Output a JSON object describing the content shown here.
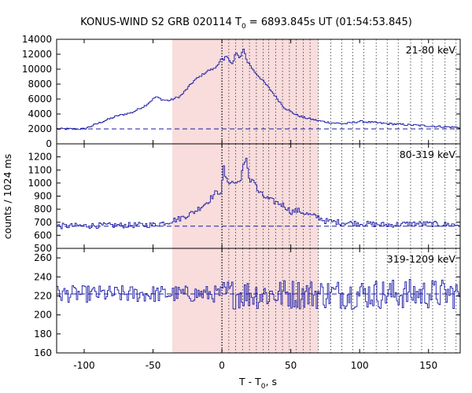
{
  "chart_data": {
    "type": "line",
    "title_prefix": "KONUS-WIND S2 GRB 020114 T",
    "title_subscript": "0",
    "title_suffix": " = 6893.845s UT (01:54:53.845)",
    "ylabel": "counts / 1024 ms",
    "xlabel_prefix": "T - T",
    "xlabel_subscript": "0",
    "xlabel_suffix": ", s",
    "xlim": [
      -120,
      173
    ],
    "xticks": [
      -100,
      -50,
      0,
      50,
      100,
      150
    ],
    "line_color": "#1a1aa6",
    "shade_color": "#f9dcdc",
    "shaded_interval": [
      -36,
      70
    ],
    "trigger_time": 0,
    "interval_boundaries": [
      5,
      10,
      15,
      20,
      25,
      30,
      34,
      39,
      44,
      49,
      54,
      59,
      64,
      70,
      79,
      87,
      95,
      103,
      112,
      120,
      128,
      137,
      145,
      153,
      162,
      170
    ],
    "panels": [
      {
        "label": "21-80 keV",
        "ylim": [
          0,
          14000
        ],
        "yticks": [
          0,
          2000,
          4000,
          6000,
          8000,
          10000,
          12000,
          14000
        ],
        "background": 2000,
        "series": {
          "x": [
            -120,
            -100,
            -85,
            -75,
            -65,
            -55,
            -48,
            -43,
            -38,
            -30,
            -20,
            -10,
            -5,
            0,
            1,
            3,
            5,
            8,
            10,
            13,
            16,
            18,
            20,
            23,
            26,
            30,
            35,
            40,
            45,
            50,
            55,
            60,
            65,
            70,
            80,
            90,
            100,
            120,
            140,
            160,
            173
          ],
          "y": [
            2000,
            2000,
            3100,
            3800,
            4200,
            5200,
            6300,
            5900,
            5800,
            6400,
            8500,
            9800,
            10100,
            11500,
            11000,
            11800,
            11300,
            10700,
            12300,
            11400,
            12800,
            11100,
            10700,
            9800,
            9200,
            8400,
            7300,
            6100,
            4900,
            4300,
            3800,
            3500,
            3300,
            3100,
            2800,
            2700,
            3000,
            2700,
            2500,
            2300,
            2200
          ],
          "noise": 130
        }
      },
      {
        "label": "80-319 keV",
        "ylim": [
          500,
          1300
        ],
        "yticks": [
          500,
          600,
          700,
          800,
          900,
          1000,
          1100,
          1200
        ],
        "background": 670,
        "series": {
          "x": [
            -120,
            -50,
            -40,
            -30,
            -20,
            -10,
            -5,
            0,
            1,
            3,
            6,
            10,
            13,
            15,
            18,
            20,
            23,
            26,
            30,
            35,
            40,
            45,
            50,
            55,
            60,
            65,
            70,
            75,
            85,
            100,
            120,
            140,
            173
          ],
          "y": [
            670,
            680,
            700,
            730,
            780,
            860,
            920,
            940,
            1140,
            1020,
            1010,
            1000,
            1010,
            1110,
            1180,
            1020,
            1030,
            940,
            900,
            870,
            850,
            830,
            780,
            790,
            770,
            750,
            740,
            710,
            700,
            690,
            680,
            690,
            680
          ],
          "noise": 22
        }
      },
      {
        "label": "319-1209 keV",
        "ylim": [
          160,
          270
        ],
        "yticks": [
          160,
          180,
          200,
          220,
          240,
          260
        ],
        "background": 222,
        "series": {
          "x": [
            -120,
            0,
            173
          ],
          "y": [
            222,
            222,
            222
          ],
          "noise": 9,
          "noise_after_zero": 16
        }
      }
    ]
  }
}
